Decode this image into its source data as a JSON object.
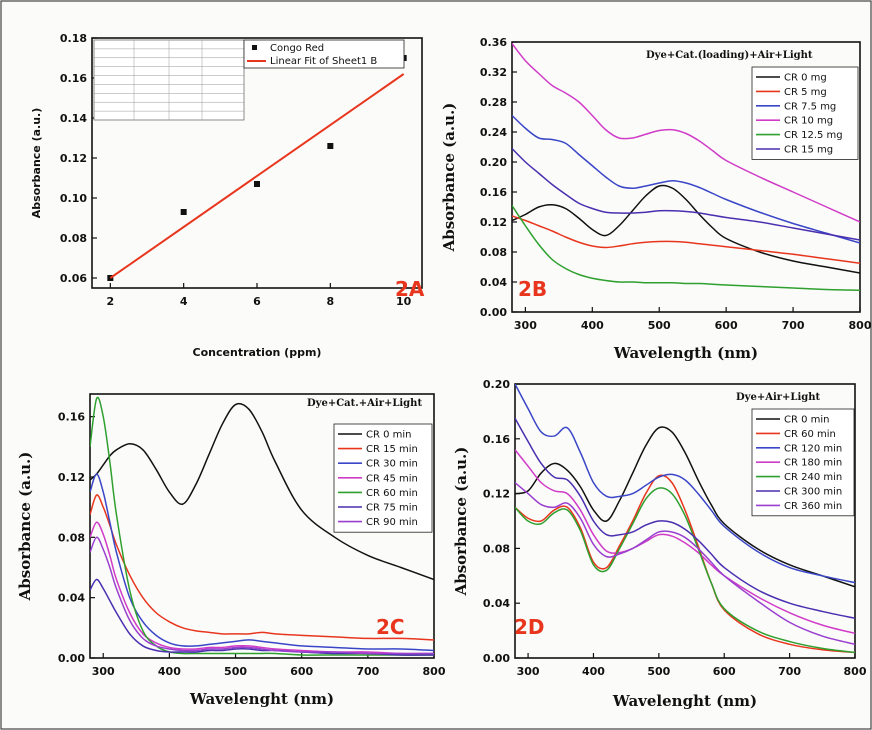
{
  "chart_data": [
    {
      "id": "2A",
      "type": "scatter",
      "panel_label": "2A",
      "xlabel": "Concentration (ppm)",
      "ylabel": "Absorbance (a.u.)",
      "xlim": [
        1.5,
        10.5
      ],
      "ylim": [
        0.055,
        0.18
      ],
      "xticks": [
        2,
        4,
        6,
        8,
        10
      ],
      "yticks": [
        0.06,
        0.08,
        0.1,
        0.12,
        0.14,
        0.16,
        0.18
      ],
      "tick_decimals": 2,
      "legend": {
        "position": "top-right",
        "entries": [
          "Congo Red",
          "Linear Fit of Sheet1 B"
        ]
      },
      "series": [
        {
          "name": "Congo Red",
          "kind": "marker",
          "color": "#111111",
          "x": [
            2,
            4,
            6,
            8,
            10
          ],
          "y": [
            0.06,
            0.093,
            0.107,
            0.126,
            0.17
          ]
        },
        {
          "name": "Linear Fit of Sheet1 B",
          "kind": "line",
          "color": "#e8361e",
          "x": [
            2,
            10
          ],
          "y": [
            0.06,
            0.162
          ]
        }
      ]
    },
    {
      "id": "2B",
      "type": "line",
      "panel_label": "2B",
      "title": "Dye+Cat.(loading)+Air+Light",
      "xlabel": "Wavelength (nm)",
      "ylabel": "Absorbance (a.u.)",
      "xlim": [
        280,
        800
      ],
      "ylim": [
        0,
        0.36
      ],
      "xticks": [
        300,
        400,
        500,
        600,
        700,
        800
      ],
      "yticks": [
        0.0,
        0.04,
        0.08,
        0.12,
        0.16,
        0.2,
        0.24,
        0.28,
        0.32,
        0.36
      ],
      "tick_decimals": 2,
      "legend": {
        "position": "top-right"
      },
      "x": [
        280,
        300,
        320,
        340,
        360,
        380,
        400,
        420,
        440,
        460,
        480,
        500,
        520,
        540,
        560,
        580,
        600,
        650,
        700,
        750,
        800
      ],
      "series": [
        {
          "name": "CR 0 mg",
          "color": "#111111",
          "values": [
            0.122,
            0.13,
            0.14,
            0.143,
            0.138,
            0.125,
            0.11,
            0.102,
            0.115,
            0.135,
            0.155,
            0.168,
            0.165,
            0.15,
            0.13,
            0.112,
            0.098,
            0.08,
            0.068,
            0.06,
            0.052
          ]
        },
        {
          "name": "CR 5 mg",
          "color": "#e8361e",
          "values": [
            0.128,
            0.122,
            0.115,
            0.108,
            0.1,
            0.093,
            0.088,
            0.086,
            0.088,
            0.091,
            0.093,
            0.094,
            0.094,
            0.093,
            0.091,
            0.089,
            0.087,
            0.082,
            0.077,
            0.071,
            0.065
          ]
        },
        {
          "name": "CR 7.5 mg",
          "color": "#3a46c8",
          "values": [
            0.262,
            0.245,
            0.232,
            0.23,
            0.225,
            0.21,
            0.195,
            0.18,
            0.168,
            0.165,
            0.168,
            0.172,
            0.175,
            0.172,
            0.166,
            0.158,
            0.15,
            0.133,
            0.118,
            0.105,
            0.092
          ]
        },
        {
          "name": "CR 10 mg",
          "color": "#d03cc8",
          "values": [
            0.358,
            0.335,
            0.318,
            0.302,
            0.292,
            0.28,
            0.262,
            0.243,
            0.232,
            0.232,
            0.237,
            0.242,
            0.243,
            0.238,
            0.228,
            0.215,
            0.202,
            0.18,
            0.16,
            0.14,
            0.12
          ]
        },
        {
          "name": "CR 12.5 mg",
          "color": "#2fa02f",
          "values": [
            0.142,
            0.115,
            0.09,
            0.07,
            0.058,
            0.05,
            0.045,
            0.042,
            0.04,
            0.04,
            0.039,
            0.039,
            0.039,
            0.038,
            0.038,
            0.037,
            0.036,
            0.034,
            0.032,
            0.03,
            0.029
          ]
        },
        {
          "name": "CR 15 mg",
          "color": "#4a2fb0",
          "values": [
            0.218,
            0.2,
            0.185,
            0.17,
            0.157,
            0.145,
            0.138,
            0.133,
            0.132,
            0.132,
            0.133,
            0.135,
            0.135,
            0.134,
            0.132,
            0.129,
            0.126,
            0.12,
            0.112,
            0.104,
            0.096
          ]
        }
      ]
    },
    {
      "id": "2C",
      "type": "line",
      "panel_label": "2C",
      "title": "Dye+Cat.+Air+Light",
      "xlabel": "Wavelenght (nm)",
      "ylabel": "Absorbance (a.u.)",
      "xlim": [
        280,
        800
      ],
      "ylim": [
        0,
        0.175
      ],
      "xticks": [
        300,
        400,
        500,
        600,
        700,
        800
      ],
      "yticks": [
        0.0,
        0.04,
        0.08,
        0.12,
        0.16
      ],
      "tick_decimals": 2,
      "legend": {
        "position": "top-right"
      },
      "x": [
        280,
        290,
        300,
        310,
        320,
        340,
        360,
        380,
        400,
        420,
        440,
        460,
        480,
        500,
        520,
        540,
        560,
        600,
        650,
        700,
        750,
        800
      ],
      "series": [
        {
          "name": "CR 0 min",
          "color": "#111111",
          "values": [
            0.118,
            0.122,
            0.128,
            0.134,
            0.138,
            0.142,
            0.138,
            0.125,
            0.11,
            0.102,
            0.115,
            0.135,
            0.155,
            0.168,
            0.165,
            0.15,
            0.13,
            0.098,
            0.08,
            0.068,
            0.06,
            0.052
          ]
        },
        {
          "name": "CR 15 min",
          "color": "#e8361e",
          "values": [
            0.095,
            0.108,
            0.1,
            0.088,
            0.075,
            0.055,
            0.04,
            0.03,
            0.024,
            0.02,
            0.018,
            0.017,
            0.016,
            0.016,
            0.016,
            0.017,
            0.016,
            0.015,
            0.014,
            0.013,
            0.013,
            0.012
          ]
        },
        {
          "name": "CR 30 min",
          "color": "#3a46c8",
          "values": [
            0.11,
            0.122,
            0.11,
            0.09,
            0.07,
            0.04,
            0.024,
            0.015,
            0.01,
            0.008,
            0.008,
            0.009,
            0.01,
            0.011,
            0.012,
            0.011,
            0.01,
            0.008,
            0.007,
            0.006,
            0.006,
            0.005
          ]
        },
        {
          "name": "CR 45 min",
          "color": "#d03cc8",
          "values": [
            0.08,
            0.09,
            0.082,
            0.068,
            0.052,
            0.03,
            0.016,
            0.01,
            0.007,
            0.006,
            0.006,
            0.007,
            0.007,
            0.008,
            0.008,
            0.007,
            0.006,
            0.005,
            0.004,
            0.004,
            0.003,
            0.003
          ]
        },
        {
          "name": "CR 60 min",
          "color": "#2fa02f",
          "values": [
            0.14,
            0.172,
            0.16,
            0.13,
            0.095,
            0.045,
            0.018,
            0.008,
            0.004,
            0.003,
            0.003,
            0.003,
            0.003,
            0.003,
            0.003,
            0.003,
            0.003,
            0.002,
            0.002,
            0.002,
            0.002,
            0.002
          ]
        },
        {
          "name": "CR 75 min",
          "color": "#4a2fb0",
          "values": [
            0.045,
            0.052,
            0.046,
            0.038,
            0.03,
            0.016,
            0.008,
            0.005,
            0.004,
            0.004,
            0.004,
            0.005,
            0.005,
            0.006,
            0.006,
            0.005,
            0.005,
            0.004,
            0.003,
            0.003,
            0.002,
            0.002
          ]
        },
        {
          "name": "CR 90 min",
          "color": "#9a3fcf",
          "values": [
            0.07,
            0.08,
            0.072,
            0.06,
            0.046,
            0.025,
            0.013,
            0.008,
            0.006,
            0.005,
            0.005,
            0.006,
            0.006,
            0.007,
            0.007,
            0.006,
            0.005,
            0.004,
            0.004,
            0.003,
            0.003,
            0.003
          ]
        }
      ]
    },
    {
      "id": "2D",
      "type": "line",
      "panel_label": "2D",
      "title": "Dye+Air+Light",
      "xlabel": "Wavelenght (nm)",
      "ylabel": "Absorbance (a.u.)",
      "xlim": [
        280,
        800
      ],
      "ylim": [
        0,
        0.2
      ],
      "xticks": [
        300,
        400,
        500,
        600,
        700,
        800
      ],
      "yticks": [
        0.0,
        0.04,
        0.08,
        0.12,
        0.16,
        0.2
      ],
      "tick_decimals": 2,
      "legend": {
        "position": "top-right"
      },
      "x": [
        280,
        300,
        320,
        340,
        360,
        380,
        400,
        420,
        440,
        460,
        480,
        500,
        520,
        540,
        560,
        580,
        600,
        650,
        700,
        750,
        800
      ],
      "series": [
        {
          "name": "CR 0 min",
          "color": "#111111",
          "values": [
            0.12,
            0.122,
            0.135,
            0.142,
            0.137,
            0.125,
            0.108,
            0.1,
            0.115,
            0.135,
            0.155,
            0.168,
            0.165,
            0.15,
            0.13,
            0.112,
            0.098,
            0.08,
            0.068,
            0.06,
            0.052
          ]
        },
        {
          "name": "CR 60 min",
          "color": "#e8361e",
          "values": [
            0.11,
            0.102,
            0.1,
            0.108,
            0.11,
            0.095,
            0.07,
            0.066,
            0.082,
            0.1,
            0.12,
            0.133,
            0.128,
            0.108,
            0.082,
            0.055,
            0.035,
            0.018,
            0.01,
            0.006,
            0.004
          ]
        },
        {
          "name": "CR 120 min",
          "color": "#3a46c8",
          "values": [
            0.2,
            0.182,
            0.165,
            0.162,
            0.168,
            0.15,
            0.128,
            0.118,
            0.118,
            0.12,
            0.126,
            0.132,
            0.134,
            0.13,
            0.12,
            0.108,
            0.096,
            0.078,
            0.066,
            0.06,
            0.055
          ]
        },
        {
          "name": "CR 180 min",
          "color": "#d03cc8",
          "values": [
            0.152,
            0.14,
            0.128,
            0.122,
            0.12,
            0.108,
            0.09,
            0.078,
            0.077,
            0.08,
            0.085,
            0.09,
            0.089,
            0.084,
            0.077,
            0.068,
            0.06,
            0.045,
            0.033,
            0.024,
            0.018
          ]
        },
        {
          "name": "CR 240 min",
          "color": "#2fa02f",
          "values": [
            0.11,
            0.1,
            0.098,
            0.106,
            0.108,
            0.093,
            0.068,
            0.064,
            0.08,
            0.098,
            0.116,
            0.124,
            0.12,
            0.104,
            0.08,
            0.055,
            0.036,
            0.02,
            0.012,
            0.007,
            0.004
          ]
        },
        {
          "name": "CR 300 min",
          "color": "#4a2fb0",
          "values": [
            0.175,
            0.158,
            0.142,
            0.132,
            0.13,
            0.118,
            0.1,
            0.09,
            0.09,
            0.092,
            0.097,
            0.1,
            0.099,
            0.094,
            0.086,
            0.076,
            0.066,
            0.05,
            0.04,
            0.034,
            0.029
          ]
        },
        {
          "name": "CR 360 min",
          "color": "#9a3fcf",
          "values": [
            0.128,
            0.12,
            0.112,
            0.11,
            0.113,
            0.102,
            0.083,
            0.074,
            0.076,
            0.08,
            0.086,
            0.092,
            0.092,
            0.088,
            0.08,
            0.07,
            0.06,
            0.042,
            0.026,
            0.016,
            0.01
          ]
        }
      ]
    }
  ]
}
